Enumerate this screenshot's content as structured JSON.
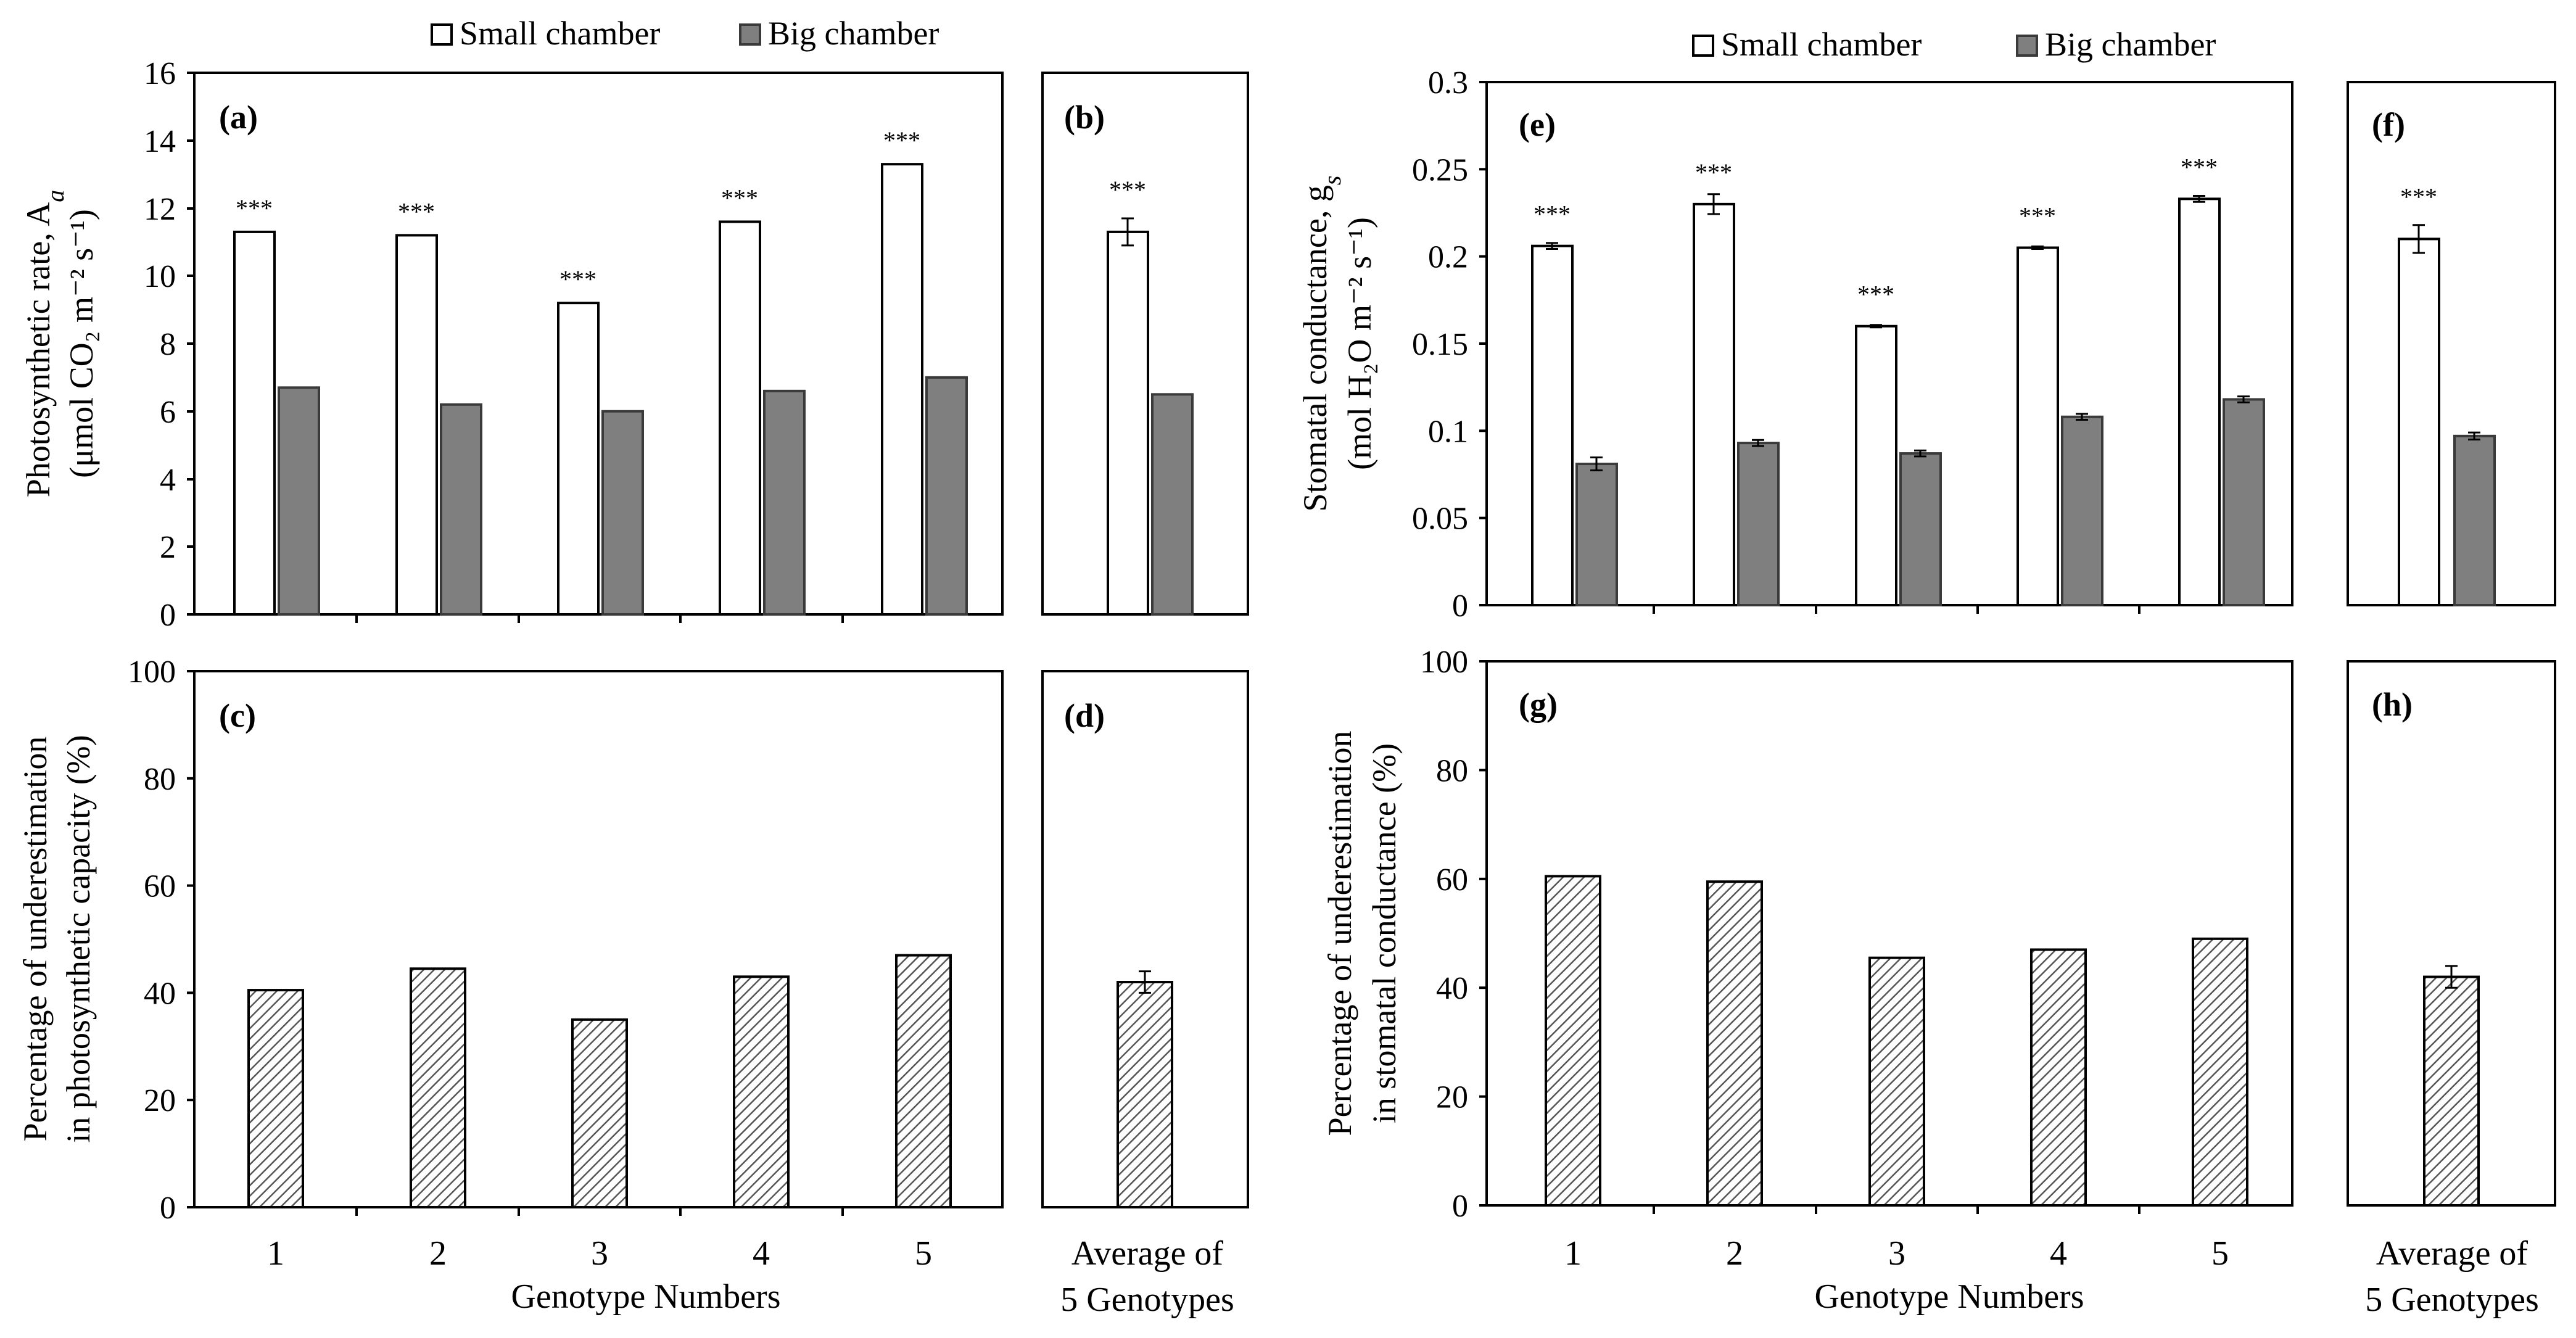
{
  "legend": {
    "small_label": "Small chamber",
    "big_label": "Big chamber",
    "small_color": "#ffffff",
    "big_color": "#7f7f7f"
  },
  "x_tick_labels": [
    "1",
    "2",
    "3",
    "4",
    "5"
  ],
  "x_axis_title": "Genotype Numbers",
  "average_label_line1": "Average of",
  "average_label_line2": "5 Genotypes",
  "left_top_ylabel_line1": "Photosynthetic rate, A",
  "left_top_ylabel_sub": "a",
  "left_top_ylabel_line2": "(μmol CO₂ m⁻² s⁻¹)",
  "left_bottom_ylabel_line1": "Percentage of underestimation",
  "left_bottom_ylabel_line2": "in photosynthetic capacity (%)",
  "right_top_ylabel_line1": "Stomatal conductance, g",
  "right_top_ylabel_sub": "s",
  "right_top_ylabel_line2": "(mol H₂O m⁻² s⁻¹)",
  "right_bottom_ylabel_line1": "Percentage of underestimation",
  "right_bottom_ylabel_line2": "in stomatal conductance (%)",
  "significance_mark": "***",
  "hatch_color": "#555555",
  "chart_data": [
    {
      "panel": "(a)",
      "type": "bar",
      "categories": [
        "1",
        "2",
        "3",
        "4",
        "5"
      ],
      "ylim": [
        0,
        16
      ],
      "yticks": [
        "0",
        "2",
        "4",
        "6",
        "8",
        "10",
        "12",
        "14",
        "16"
      ],
      "series": [
        {
          "name": "Small chamber",
          "values": [
            11.3,
            11.2,
            9.2,
            11.6,
            13.3
          ]
        },
        {
          "name": "Big chamber",
          "values": [
            6.7,
            6.2,
            6.0,
            6.6,
            7.0
          ]
        }
      ],
      "significance": [
        "***",
        "***",
        "***",
        "***",
        "***"
      ]
    },
    {
      "panel": "(b)",
      "type": "bar",
      "categories": [
        "Average of 5 Genotypes"
      ],
      "ylim": [
        0,
        16
      ],
      "series": [
        {
          "name": "Small chamber",
          "values": [
            11.3
          ],
          "error": [
            0.4
          ]
        },
        {
          "name": "Big chamber",
          "values": [
            6.5
          ]
        }
      ],
      "significance": [
        "***"
      ]
    },
    {
      "panel": "(c)",
      "type": "bar",
      "categories": [
        "1",
        "2",
        "3",
        "4",
        "5"
      ],
      "ylim": [
        0,
        100
      ],
      "yticks": [
        "0",
        "20",
        "40",
        "60",
        "80",
        "100"
      ],
      "series": [
        {
          "name": "Percentage of underestimation in photosynthetic capacity (%)",
          "values": [
            40.5,
            44.5,
            35,
            43,
            47
          ]
        }
      ]
    },
    {
      "panel": "(d)",
      "type": "bar",
      "categories": [
        "Average of 5 Genotypes"
      ],
      "ylim": [
        0,
        100
      ],
      "series": [
        {
          "name": "Percentage of underestimation in photosynthetic capacity (%)",
          "values": [
            42
          ],
          "error": [
            2
          ]
        }
      ]
    },
    {
      "panel": "(e)",
      "type": "bar",
      "categories": [
        "1",
        "2",
        "3",
        "4",
        "5"
      ],
      "ylim": [
        0,
        0.3
      ],
      "yticks": [
        "0",
        "0.05",
        "0.1",
        "0.15",
        "0.2",
        "0.25",
        "0.3"
      ],
      "series": [
        {
          "name": "Small chamber",
          "values": [
            0.206,
            0.23,
            0.16,
            0.205,
            0.233
          ],
          "error": [
            0.001,
            0.005,
            0.0,
            0.0,
            0.001
          ]
        },
        {
          "name": "Big chamber",
          "values": [
            0.081,
            0.093,
            0.087,
            0.108,
            0.118
          ],
          "error": [
            0.003,
            0.001,
            0.001,
            0.001,
            0.001
          ]
        }
      ],
      "significance": [
        "***",
        "***",
        "***",
        "***",
        "***"
      ]
    },
    {
      "panel": "(f)",
      "type": "bar",
      "categories": [
        "Average of 5 Genotypes"
      ],
      "ylim": [
        0,
        0.3
      ],
      "series": [
        {
          "name": "Small chamber",
          "values": [
            0.21
          ],
          "error": [
            0.008
          ]
        },
        {
          "name": "Big chamber",
          "values": [
            0.097
          ],
          "error": [
            0.002
          ]
        }
      ],
      "significance": [
        "***"
      ]
    },
    {
      "panel": "(g)",
      "type": "bar",
      "categories": [
        "1",
        "2",
        "3",
        "4",
        "5"
      ],
      "ylim": [
        0,
        100
      ],
      "yticks": [
        "0",
        "20",
        "40",
        "60",
        "80",
        "100"
      ],
      "series": [
        {
          "name": "Percentage of underestimation in stomatal conductance (%)",
          "values": [
            60.5,
            59.5,
            45.5,
            47,
            49
          ]
        }
      ]
    },
    {
      "panel": "(h)",
      "type": "bar",
      "categories": [
        "Average of 5 Genotypes"
      ],
      "ylim": [
        0,
        100
      ],
      "series": [
        {
          "name": "Percentage of underestimation in stomatal conductance (%)",
          "values": [
            42
          ],
          "error": [
            2
          ]
        }
      ]
    }
  ]
}
